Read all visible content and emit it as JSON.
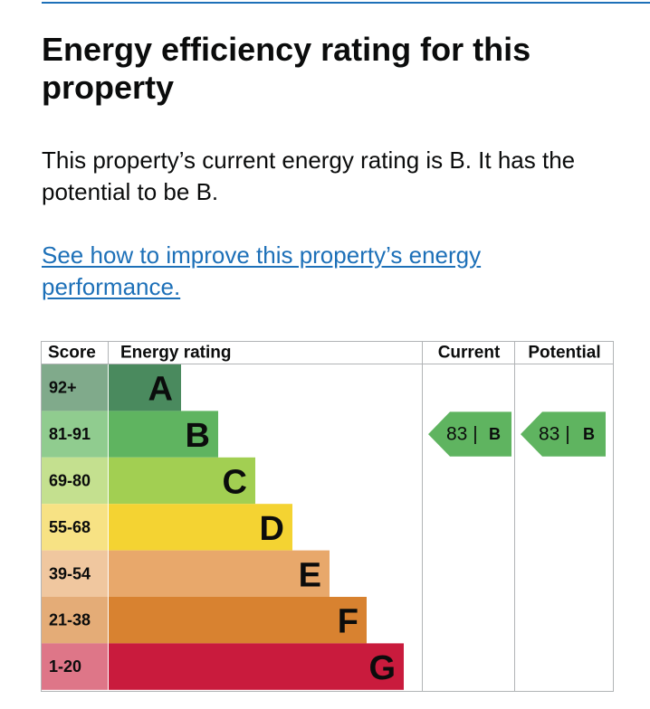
{
  "page": {
    "heading": "Energy efficiency rating for this property",
    "summary": "This property’s current energy rating is B. It has the potential to be B.",
    "improve_link": "See how to improve this property’s energy performance."
  },
  "chart_data": {
    "type": "table",
    "headers": {
      "score": "Score",
      "rating": "Energy rating",
      "current": "Current",
      "potential": "Potential"
    },
    "bands": [
      {
        "score": "92+",
        "letter": "A",
        "color": "#4a8a5e",
        "score_bg": "#80aa8b"
      },
      {
        "score": "81-91",
        "letter": "B",
        "color": "#5fb460",
        "score_bg": "#90cc8f"
      },
      {
        "score": "69-80",
        "letter": "C",
        "color": "#a2cf52",
        "score_bg": "#c4e08f"
      },
      {
        "score": "55-68",
        "letter": "D",
        "color": "#f4d332",
        "score_bg": "#f7e284"
      },
      {
        "score": "39-54",
        "letter": "E",
        "color": "#e8a86b",
        "score_bg": "#f0c79f"
      },
      {
        "score": "21-38",
        "letter": "F",
        "color": "#d88230",
        "score_bg": "#e4ac77"
      },
      {
        "score": "1-20",
        "letter": "G",
        "color": "#c91b3d",
        "score_bg": "#de7688"
      }
    ],
    "current": {
      "score": 83,
      "letter": "B",
      "color": "#5fb460"
    },
    "potential": {
      "score": 83,
      "letter": "B",
      "color": "#5fb460"
    },
    "border_color": "#b1b4b6"
  }
}
